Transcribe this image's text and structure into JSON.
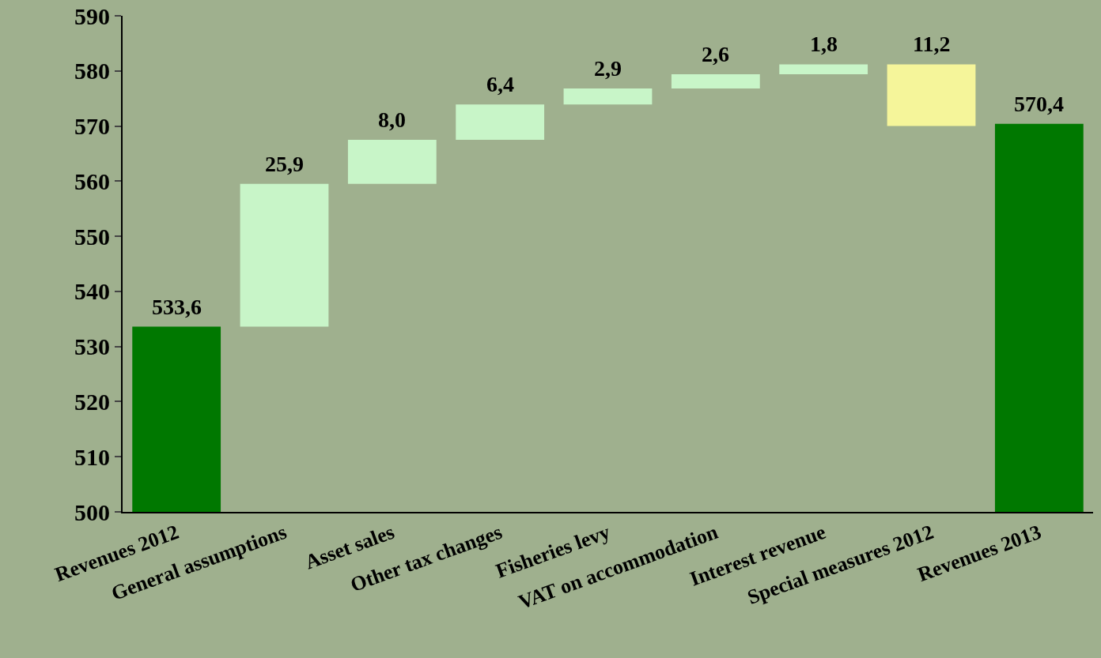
{
  "chart_data": {
    "type": "bar",
    "categories": [
      "Revenues 2012",
      "General assumptions",
      "Asset sales",
      "Other tax changes",
      "Fisheries levy",
      "VAT on accommodation",
      "Interest revenue",
      "Special measures 2012",
      "Revenues 2013"
    ],
    "values": [
      533.6,
      25.9,
      8.0,
      6.4,
      2.9,
      2.6,
      1.8,
      -11.2,
      570.4
    ],
    "base": [
      null,
      533.6,
      559.5,
      567.5,
      573.9,
      576.8,
      579.4,
      581.2,
      null
    ],
    "colors": [
      "#007800",
      "#c8f5c8",
      "#c8f5c8",
      "#c8f5c8",
      "#c8f5c8",
      "#c8f5c8",
      "#c8f5c8",
      "#f5f59a",
      "#007800"
    ],
    "value_labels": [
      "533,6",
      "25,9",
      "8,0",
      "6,4",
      "2,9",
      "2,6",
      "1,8",
      "11,2",
      "570,4"
    ],
    "ylim": [
      500,
      590
    ],
    "yticks": [
      500,
      510,
      520,
      530,
      540,
      550,
      560,
      570,
      580,
      590
    ],
    "grid": false
  }
}
